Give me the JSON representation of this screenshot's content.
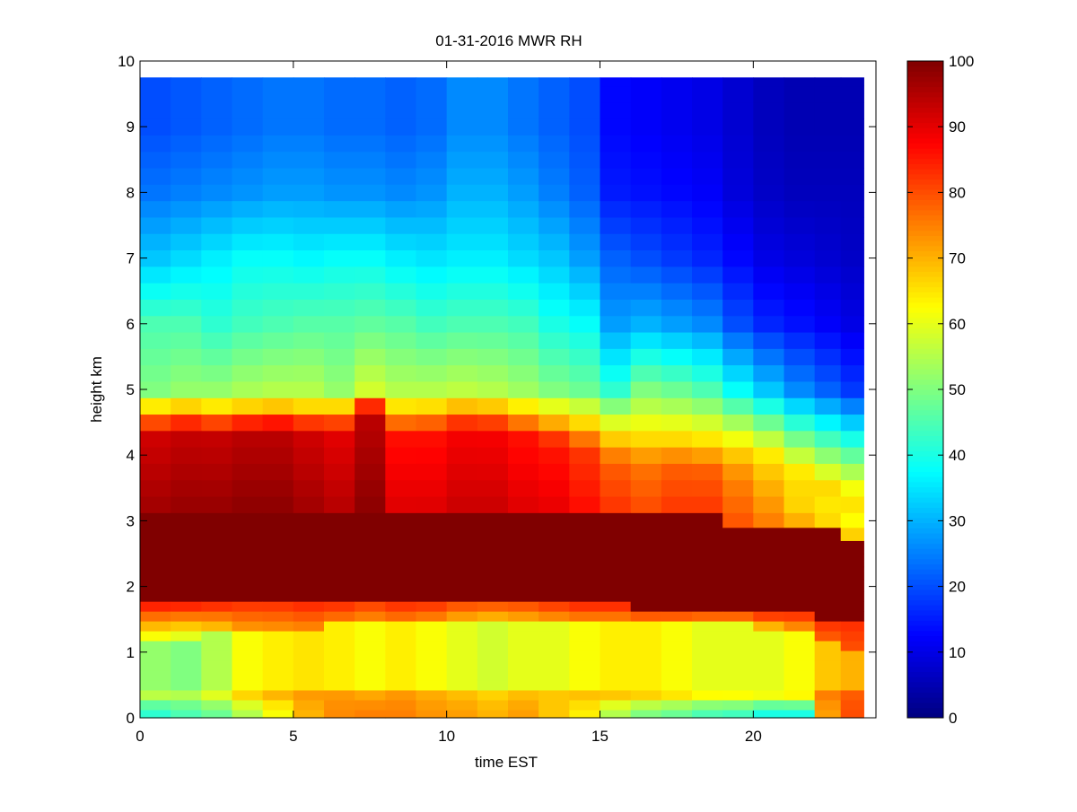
{
  "chart_data": {
    "type": "heatmap",
    "title": "01-31-2016 MWR RH",
    "xlabel": "time EST",
    "ylabel": "height km",
    "xlim": [
      0,
      24
    ],
    "ylim": [
      0,
      10
    ],
    "xticks": [
      0,
      5,
      10,
      15,
      20
    ],
    "yticks": [
      0,
      1,
      2,
      3,
      4,
      5,
      6,
      7,
      8,
      9,
      10
    ],
    "colorbar": {
      "min": 0,
      "max": 100,
      "ticks": [
        0,
        10,
        20,
        30,
        40,
        50,
        60,
        70,
        80,
        90,
        100
      ],
      "colormap": "jet"
    },
    "grid": false,
    "x": [
      0.5,
      1.5,
      2.5,
      3.5,
      4.5,
      5.5,
      6.5,
      7.5,
      8.5,
      9.5,
      10.5,
      11.5,
      12.5,
      13.5,
      14.5,
      15.5,
      16.5,
      17.5,
      18.5,
      19.5,
      20.5,
      21.5,
      22.5,
      23.2
    ],
    "heights": [
      0.05,
      0.2,
      0.35,
      0.5,
      0.65,
      0.8,
      0.95,
      1.1,
      1.25,
      1.4,
      1.55,
      1.7,
      1.85,
      2.0,
      2.2,
      2.4,
      2.6,
      2.8,
      3.0,
      3.25,
      3.5,
      3.75,
      4.0,
      4.25,
      4.5,
      4.75,
      5.0,
      5.25,
      5.5,
      5.75,
      6.0,
      6.25,
      6.5,
      6.75,
      7.0,
      7.25,
      7.5,
      7.75,
      8.0,
      8.25,
      8.5,
      8.75,
      9.0,
      9.25,
      9.5,
      9.75
    ],
    "profiles": [
      {
        "x": 0.5,
        "bot": 42,
        "low": 52,
        "lowtop": 1.25,
        "red": 90,
        "t2": 1.82,
        "t3": 3.1,
        "mid": 92,
        "rb": 4.62,
        "up5": 50,
        "up6": 45,
        "up7": 32,
        "up8": 24,
        "up9": 20
      },
      {
        "x": 1.5,
        "bot": 45,
        "low": 50,
        "lowtop": 1.25,
        "red": 90,
        "t2": 1.82,
        "t3": 3.1,
        "mid": 93,
        "rb": 4.66,
        "up5": 52,
        "up6": 45,
        "up7": 34,
        "up8": 25,
        "up9": 21
      },
      {
        "x": 2.5,
        "bot": 48,
        "low": 55,
        "lowtop": 1.3,
        "red": 88,
        "t2": 1.82,
        "t3": 3.1,
        "mid": 93,
        "rb": 4.62,
        "up5": 52,
        "up6": 42,
        "up7": 36,
        "up8": 26,
        "up9": 22
      },
      {
        "x": 3.5,
        "bot": 55,
        "low": 62,
        "lowtop": 1.35,
        "red": 85,
        "t2": 1.82,
        "t3": 3.1,
        "mid": 94,
        "rb": 4.66,
        "up5": 54,
        "up6": 44,
        "up7": 38,
        "up8": 27,
        "up9": 23
      },
      {
        "x": 4.5,
        "bot": 62,
        "low": 64,
        "lowtop": 1.4,
        "red": 85,
        "t2": 1.82,
        "t3": 3.1,
        "mid": 94,
        "rb": 4.68,
        "up5": 55,
        "up6": 45,
        "up7": 38,
        "up8": 28,
        "up9": 24
      },
      {
        "x": 5.5,
        "bot": 70,
        "low": 65,
        "lowtop": 1.4,
        "red": 86,
        "t2": 1.82,
        "t3": 3.1,
        "mid": 92,
        "rb": 4.65,
        "up5": 55,
        "up6": 46,
        "up7": 37,
        "up8": 28,
        "up9": 24
      },
      {
        "x": 6.5,
        "bot": 74,
        "low": 64,
        "lowtop": 1.45,
        "red": 86,
        "t2": 1.82,
        "t3": 3.1,
        "mid": 90,
        "rb": 4.65,
        "up5": 52,
        "up6": 46,
        "up7": 38,
        "up8": 27,
        "up9": 23
      },
      {
        "x": 7.5,
        "bot": 75,
        "low": 62,
        "lowtop": 1.45,
        "red": 84,
        "t2": 1.82,
        "t3": 3.1,
        "mid": 94,
        "rb": 4.9,
        "up5": 58,
        "up6": 47,
        "up7": 38,
        "up8": 27,
        "up9": 23
      },
      {
        "x": 8.5,
        "bot": 75,
        "low": 64,
        "lowtop": 1.45,
        "red": 86,
        "t2": 1.82,
        "t3": 3.1,
        "mid": 86,
        "rb": 4.62,
        "up5": 55,
        "up6": 46,
        "up7": 36,
        "up8": 26,
        "up9": 22
      },
      {
        "x": 9.5,
        "bot": 73,
        "low": 62,
        "lowtop": 1.45,
        "red": 86,
        "t2": 1.82,
        "t3": 3.1,
        "mid": 86,
        "rb": 4.64,
        "up5": 55,
        "up6": 44,
        "up7": 35,
        "up8": 27,
        "up9": 23
      },
      {
        "x": 10.5,
        "bot": 72,
        "low": 60,
        "lowtop": 1.5,
        "red": 84,
        "t2": 1.82,
        "t3": 3.1,
        "mid": 88,
        "rb": 4.7,
        "up5": 56,
        "up6": 45,
        "up7": 36,
        "up8": 30,
        "up9": 26
      },
      {
        "x": 11.5,
        "bot": 70,
        "low": 58,
        "lowtop": 1.5,
        "red": 84,
        "t2": 1.82,
        "t3": 3.1,
        "mid": 88,
        "rb": 4.68,
        "up5": 55,
        "up6": 45,
        "up7": 36,
        "up8": 30,
        "up9": 26
      },
      {
        "x": 12.5,
        "bot": 72,
        "low": 60,
        "lowtop": 1.5,
        "red": 84,
        "t2": 1.82,
        "t3": 3.1,
        "mid": 86,
        "rb": 4.6,
        "up5": 53,
        "up6": 44,
        "up7": 34,
        "up8": 28,
        "up9": 24
      },
      {
        "x": 13.5,
        "bot": 68,
        "low": 60,
        "lowtop": 1.45,
        "red": 86,
        "t2": 1.82,
        "t3": 3.1,
        "mid": 85,
        "rb": 4.5,
        "up5": 50,
        "up6": 40,
        "up7": 32,
        "up8": 25,
        "up9": 22
      },
      {
        "x": 14.5,
        "bot": 64,
        "low": 62,
        "lowtop": 1.45,
        "red": 86,
        "t2": 1.78,
        "t3": 3.1,
        "mid": 82,
        "rb": 4.4,
        "up5": 48,
        "up6": 38,
        "up7": 28,
        "up8": 22,
        "up9": 20
      },
      {
        "x": 15.5,
        "bot": 55,
        "low": 64,
        "lowtop": 1.5,
        "red": 85,
        "t2": 1.75,
        "t3": 3.1,
        "mid": 78,
        "rb": 4.2,
        "up5": 42,
        "up6": 28,
        "up7": 22,
        "up8": 15,
        "up9": 13
      },
      {
        "x": 16.5,
        "bot": 50,
        "low": 64,
        "lowtop": 1.5,
        "red": 85,
        "t2": 1.62,
        "t3": 3.05,
        "mid": 76,
        "rb": 4.15,
        "up5": 50,
        "up6": 30,
        "up7": 20,
        "up8": 14,
        "up9": 12
      },
      {
        "x": 17.5,
        "bot": 48,
        "low": 62,
        "lowtop": 1.5,
        "red": 85,
        "t2": 1.6,
        "t3": 3.05,
        "mid": 78,
        "rb": 4.15,
        "up5": 48,
        "up6": 28,
        "up7": 18,
        "up8": 13,
        "up9": 11
      },
      {
        "x": 18.5,
        "bot": 45,
        "low": 60,
        "lowtop": 1.5,
        "red": 85,
        "t2": 1.6,
        "t3": 3.05,
        "mid": 78,
        "rb": 4.1,
        "up5": 45,
        "up6": 26,
        "up7": 16,
        "up8": 12,
        "up9": 10
      },
      {
        "x": 19.5,
        "bot": 44,
        "low": 60,
        "lowtop": 1.5,
        "red": 85,
        "t2": 1.6,
        "t3": 3.0,
        "mid": 74,
        "rb": 4.0,
        "up5": 38,
        "up6": 20,
        "up7": 13,
        "up8": 9,
        "up9": 8
      },
      {
        "x": 20.5,
        "bot": 40,
        "low": 60,
        "lowtop": 1.4,
        "red": 85,
        "t2": 1.6,
        "t3": 3.0,
        "mid": 70,
        "rb": 3.85,
        "up5": 32,
        "up6": 16,
        "up7": 10,
        "up8": 7,
        "up9": 6
      },
      {
        "x": 21.5,
        "bot": 40,
        "low": 62,
        "lowtop": 1.35,
        "red": 84,
        "t2": 1.6,
        "t3": 2.95,
        "mid": 66,
        "rb": 3.6,
        "up5": 26,
        "up6": 14,
        "up7": 9,
        "up8": 6,
        "up9": 5
      },
      {
        "x": 22.5,
        "bot": 72,
        "low": 68,
        "lowtop": 1.2,
        "red": 84,
        "t2": 1.5,
        "t3": 2.85,
        "mid": 64,
        "rb": 3.4,
        "up5": 22,
        "up6": 12,
        "up7": 8,
        "up8": 6,
        "up9": 5
      },
      {
        "x": 23.2,
        "bot": 80,
        "low": 70,
        "lowtop": 1.1,
        "red": 84,
        "t2": 1.55,
        "t3": 2.8,
        "mid": 62,
        "rb": 3.25,
        "up5": 18,
        "up6": 10,
        "up7": 7,
        "up8": 6,
        "up9": 5
      }
    ]
  }
}
